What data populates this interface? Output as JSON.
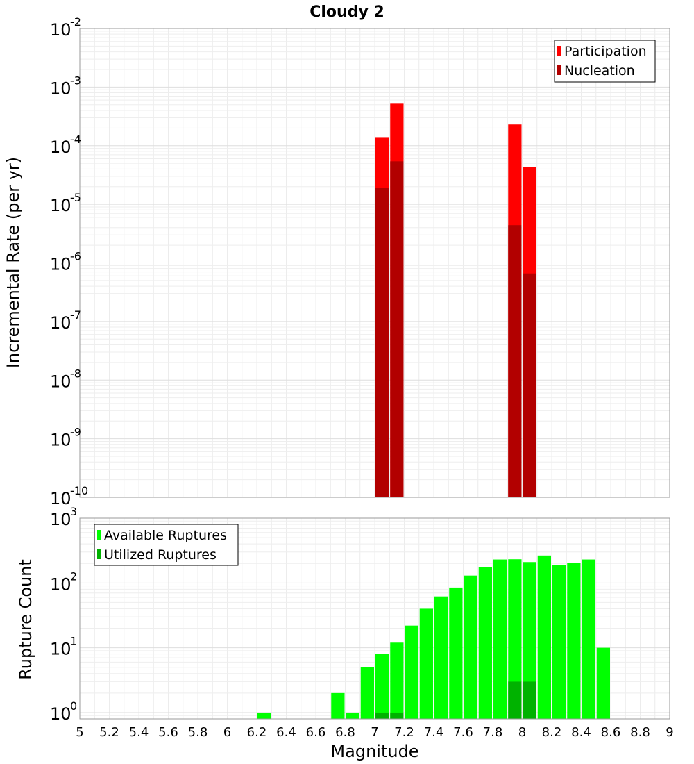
{
  "chart_data": [
    {
      "type": "bar",
      "title": "Cloudy 2",
      "xlabel": "",
      "ylabel": "Incremental Rate (per yr)",
      "yscale": "log",
      "ylim": [
        1e-10,
        0.01
      ],
      "xlim": [
        5,
        9
      ],
      "grid": true,
      "legend_position": "top-right",
      "y_ticks": [
        {
          "base": "10",
          "exp": "-10"
        },
        {
          "base": "10",
          "exp": "-9"
        },
        {
          "base": "10",
          "exp": "-8"
        },
        {
          "base": "10",
          "exp": "-7"
        },
        {
          "base": "10",
          "exp": "-6"
        },
        {
          "base": "10",
          "exp": "-5"
        },
        {
          "base": "10",
          "exp": "-4"
        },
        {
          "base": "10",
          "exp": "-3"
        },
        {
          "base": "10",
          "exp": "-2"
        }
      ],
      "series": [
        {
          "name": "Participation",
          "color": "#ff0000",
          "x": [
            7.05,
            7.15,
            7.95,
            8.05
          ],
          "values": [
            0.00014,
            0.00052,
            0.00023,
            4.3e-05
          ]
        },
        {
          "name": "Nucleation",
          "color": "#b20000",
          "x": [
            7.05,
            7.15,
            7.95,
            8.05
          ],
          "values": [
            1.9e-05,
            5.4e-05,
            4.4e-06,
            6.6e-07
          ]
        }
      ]
    },
    {
      "type": "bar",
      "title": "",
      "xlabel": "Magnitude",
      "ylabel": "Rupture Count",
      "yscale": "log",
      "ylim": [
        0.8,
        1000
      ],
      "xlim": [
        5,
        9
      ],
      "grid": true,
      "legend_position": "top-left",
      "x_ticks": [
        "5",
        "5.2",
        "5.4",
        "5.6",
        "5.8",
        "6",
        "6.2",
        "6.4",
        "6.6",
        "6.8",
        "7",
        "7.2",
        "7.4",
        "7.6",
        "7.8",
        "8",
        "8.2",
        "8.4",
        "8.6",
        "8.8",
        "9"
      ],
      "y_ticks": [
        {
          "base": "10",
          "exp": "0"
        },
        {
          "base": "10",
          "exp": "1"
        },
        {
          "base": "10",
          "exp": "2"
        },
        {
          "base": "10",
          "exp": "3"
        }
      ],
      "series": [
        {
          "name": "Available Ruptures",
          "color": "#00ff00",
          "x": [
            6.25,
            6.75,
            6.85,
            6.95,
            7.05,
            7.15,
            7.25,
            7.35,
            7.45,
            7.55,
            7.65,
            7.75,
            7.85,
            7.95,
            8.05,
            8.15,
            8.25,
            8.35,
            8.45,
            8.55
          ],
          "values": [
            1,
            2,
            1,
            5,
            8,
            12,
            22,
            40,
            62,
            85,
            130,
            175,
            230,
            232,
            210,
            265,
            190,
            205,
            230,
            10
          ]
        },
        {
          "name": "Utilized Ruptures",
          "color": "#00b200",
          "x": [
            7.05,
            7.15,
            7.95,
            8.05
          ],
          "values": [
            1,
            1,
            3,
            3
          ]
        }
      ]
    }
  ]
}
